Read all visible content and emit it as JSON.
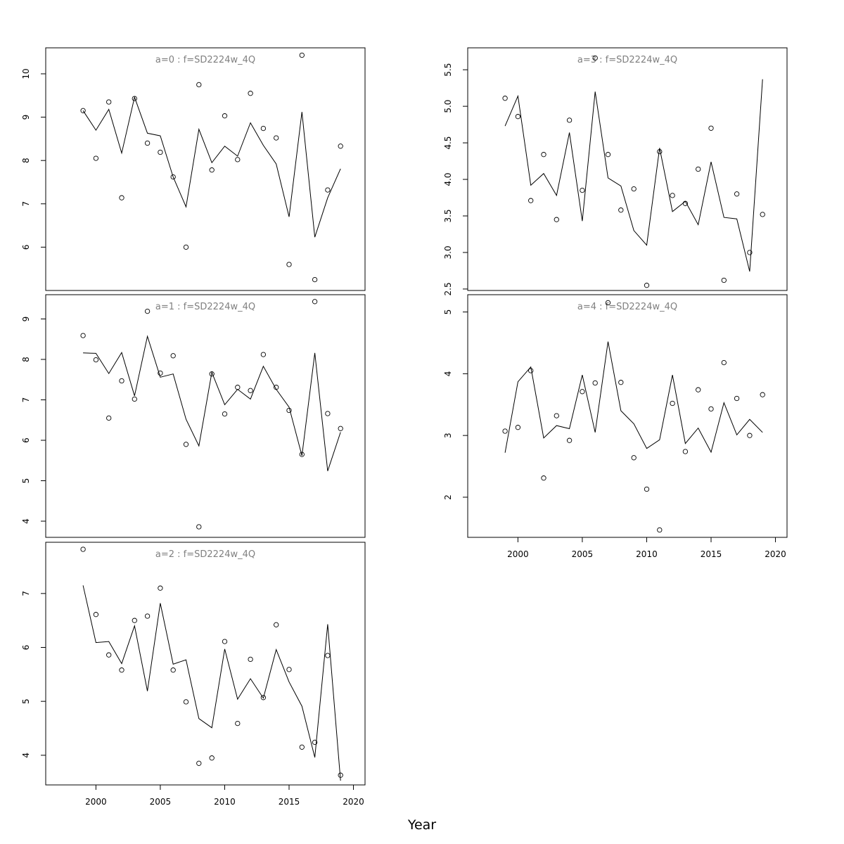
{
  "figure": {
    "xlabel": "Year"
  },
  "chart_data": [
    {
      "type": "line",
      "title": "a=0 : f=SD2224w_4Q",
      "x": [
        1999,
        2000,
        2001,
        2002,
        2003,
        2004,
        2005,
        2006,
        2007,
        2008,
        2009,
        2010,
        2011,
        2012,
        2013,
        2014,
        2015,
        2016,
        2017,
        2018,
        2019
      ],
      "series": [
        {
          "kind": "points",
          "values": [
            9.15,
            8.05,
            9.35,
            7.14,
            9.43,
            8.4,
            8.19,
            7.62,
            6.0,
            9.75,
            7.78,
            9.03,
            8.02,
            9.55,
            8.74,
            8.52,
            5.6,
            10.43,
            5.25,
            7.32,
            8.33
          ]
        },
        {
          "kind": "line",
          "values": [
            9.15,
            8.7,
            9.18,
            8.17,
            9.46,
            8.63,
            8.57,
            7.62,
            6.93,
            8.72,
            7.95,
            8.33,
            8.1,
            8.87,
            8.35,
            7.92,
            6.7,
            9.12,
            6.23,
            7.14,
            7.81
          ]
        }
      ],
      "ylim": [
        5.0,
        10.6
      ],
      "yticks": [
        6,
        7,
        8,
        9,
        10
      ],
      "xlim": [
        1996.1,
        2020.9
      ]
    },
    {
      "type": "line",
      "title": "a=1 : f=SD2224w_4Q",
      "x": [
        1999,
        2000,
        2001,
        2002,
        2003,
        2004,
        2005,
        2006,
        2007,
        2008,
        2009,
        2010,
        2011,
        2012,
        2013,
        2014,
        2015,
        2016,
        2017,
        2018,
        2019
      ],
      "series": [
        {
          "kind": "points",
          "values": [
            8.59,
            7.99,
            6.55,
            7.47,
            7.02,
            9.19,
            7.66,
            8.09,
            5.9,
            3.86,
            7.64,
            6.65,
            7.31,
            7.23,
            8.12,
            7.31,
            6.74,
            5.65,
            9.43,
            6.66,
            6.29
          ]
        },
        {
          "kind": "line",
          "values": [
            8.16,
            8.15,
            7.65,
            8.17,
            7.1,
            8.57,
            7.56,
            7.64,
            6.52,
            5.86,
            7.68,
            6.88,
            7.26,
            7.02,
            7.83,
            7.26,
            6.82,
            5.62,
            8.16,
            5.24,
            6.2
          ]
        }
      ],
      "ylim": [
        3.6,
        9.6
      ],
      "yticks": [
        4,
        5,
        6,
        7,
        8,
        9
      ],
      "xlim": [
        1996.1,
        2020.9
      ]
    },
    {
      "type": "line",
      "title": "a=2 : f=SD2224w_4Q",
      "x": [
        1999,
        2000,
        2001,
        2002,
        2003,
        2004,
        2005,
        2006,
        2007,
        2008,
        2009,
        2010,
        2011,
        2012,
        2013,
        2014,
        2015,
        2016,
        2017,
        2018,
        2019
      ],
      "series": [
        {
          "kind": "points",
          "values": [
            7.82,
            6.61,
            5.86,
            5.58,
            6.5,
            6.58,
            7.1,
            5.58,
            4.99,
            3.85,
            3.95,
            6.11,
            4.59,
            5.78,
            5.07,
            6.42,
            5.59,
            4.15,
            4.24,
            5.85,
            3.63
          ]
        },
        {
          "kind": "line",
          "values": [
            7.15,
            6.09,
            6.11,
            5.7,
            6.4,
            5.19,
            6.82,
            5.69,
            5.77,
            4.68,
            4.51,
            5.97,
            5.04,
            5.42,
            5.06,
            5.96,
            5.36,
            4.91,
            3.96,
            6.43,
            3.53
          ]
        }
      ],
      "ylim": [
        3.45,
        7.95
      ],
      "yticks": [
        4,
        5,
        6,
        7
      ],
      "xlim": [
        1996.1,
        2020.9
      ]
    },
    {
      "type": "line",
      "title": "a=3 : f=SD2224w_4Q",
      "x": [
        1999,
        2000,
        2001,
        2002,
        2003,
        2004,
        2005,
        2006,
        2007,
        2008,
        2009,
        2010,
        2011,
        2012,
        2013,
        2014,
        2015,
        2016,
        2017,
        2018,
        2019
      ],
      "series": [
        {
          "kind": "points",
          "values": [
            5.11,
            4.86,
            3.71,
            4.34,
            3.45,
            4.81,
            3.85,
            5.66,
            4.34,
            3.58,
            3.87,
            2.55,
            4.38,
            3.78,
            3.67,
            4.14,
            4.7,
            2.62,
            3.8,
            3.0,
            3.52
          ]
        },
        {
          "kind": "line",
          "values": [
            4.73,
            5.14,
            3.92,
            4.08,
            3.78,
            4.64,
            3.43,
            5.2,
            4.02,
            3.91,
            3.3,
            3.1,
            4.43,
            3.56,
            3.7,
            3.38,
            4.24,
            3.48,
            3.46,
            2.74,
            5.37
          ]
        }
      ],
      "ylim": [
        2.48,
        5.8
      ],
      "yticks": [
        2.5,
        3.0,
        3.5,
        4.0,
        4.5,
        5.0,
        5.5
      ],
      "ytick_labels": [
        "2.5",
        "3.0",
        "3.5",
        "4.0",
        "4.5",
        "5.0",
        "5.5"
      ],
      "xlim": [
        1996.1,
        2020.9
      ]
    },
    {
      "type": "line",
      "title": "a=4 : f=SD2224w_4Q",
      "x": [
        1999,
        2000,
        2001,
        2002,
        2003,
        2004,
        2005,
        2006,
        2007,
        2008,
        2009,
        2010,
        2011,
        2012,
        2013,
        2014,
        2015,
        2016,
        2017,
        2018,
        2019
      ],
      "series": [
        {
          "kind": "points",
          "values": [
            3.07,
            3.13,
            4.05,
            2.31,
            3.32,
            2.92,
            3.71,
            3.85,
            5.15,
            3.86,
            2.64,
            2.13,
            1.47,
            3.52,
            2.74,
            3.74,
            3.43,
            4.18,
            3.6,
            3.0,
            3.66
          ]
        },
        {
          "kind": "line",
          "values": [
            2.72,
            3.87,
            4.11,
            2.96,
            3.16,
            3.11,
            3.98,
            3.05,
            4.52,
            3.4,
            3.19,
            2.79,
            2.93,
            3.98,
            2.87,
            3.12,
            2.73,
            3.53,
            3.01,
            3.26,
            3.05
          ]
        }
      ],
      "ylim": [
        1.35,
        5.28
      ],
      "yticks": [
        2,
        3,
        4,
        5
      ],
      "xlim": [
        1996.1,
        2020.9
      ],
      "xticks": [
        2000,
        2005,
        2010,
        2015,
        2020
      ]
    }
  ]
}
